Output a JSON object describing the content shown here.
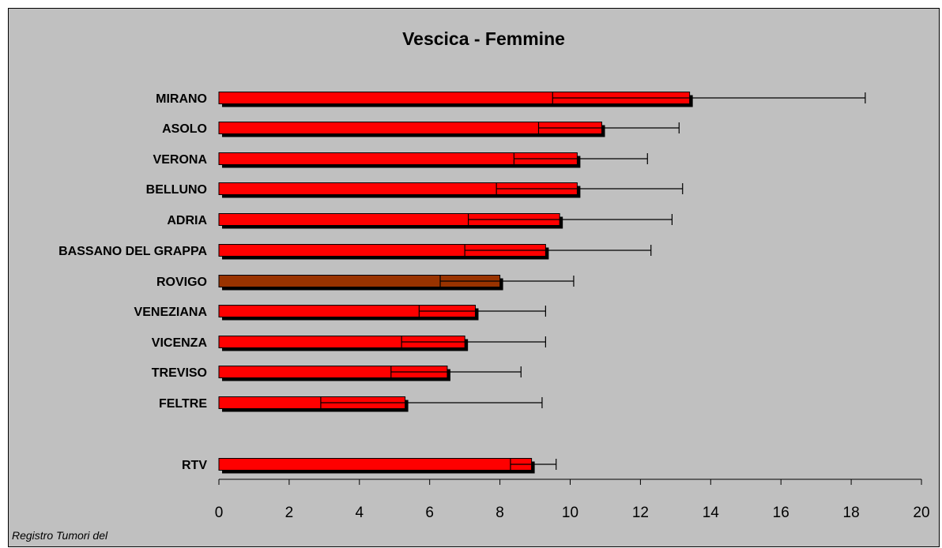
{
  "chart_data": {
    "type": "bar",
    "title": "Vescica - Femmine",
    "footer": "Registro Tumori del",
    "categories": [
      "MIRANO",
      "ASOLO",
      "VERONA",
      "BELLUNO",
      "ADRIA",
      "BASSANO DEL GRAPPA",
      "ROVIGO",
      "VENEZIANA",
      "VICENZA",
      "TREVISO",
      "FELTRE",
      "RTV"
    ],
    "values": [
      13.4,
      10.9,
      10.2,
      10.2,
      9.7,
      9.3,
      8.0,
      7.3,
      7.0,
      6.5,
      5.3,
      8.9
    ],
    "error_low": [
      9.5,
      9.1,
      8.4,
      7.9,
      7.1,
      7.0,
      6.3,
      5.7,
      5.2,
      4.9,
      2.9,
      8.3
    ],
    "error_high": [
      18.4,
      13.1,
      12.2,
      13.2,
      12.9,
      12.3,
      10.1,
      9.3,
      9.3,
      8.6,
      9.2,
      9.6
    ],
    "highlight": "ROVIGO",
    "xlim": [
      0,
      20
    ],
    "xticks": [
      0,
      2,
      4,
      6,
      8,
      10,
      12,
      14,
      16,
      18,
      20
    ],
    "colors": {
      "bar": "#ff0000",
      "highlight": "#993300",
      "shadow": "#000000",
      "background": "#c0c0c0"
    },
    "orientation": "horizontal",
    "legend": "none",
    "grid": false
  }
}
